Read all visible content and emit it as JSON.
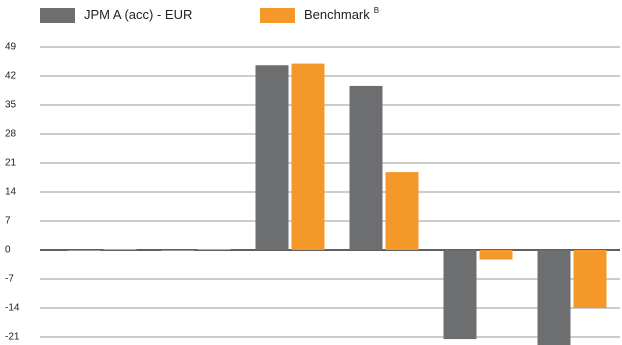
{
  "chart_data": {
    "type": "bar",
    "categories": [
      null,
      null,
      null,
      null,
      null,
      null
    ],
    "series": [
      {
        "name": "JPM A (acc) - EUR",
        "color": "#6d6e70",
        "values": [
          0,
          0,
          44.6,
          39.6,
          -21.5,
          -24
        ]
      },
      {
        "name": "Benchmark",
        "name_superscript": "B",
        "color": "#f4982a",
        "values": [
          0.2,
          0.2,
          45,
          18.8,
          -2.3,
          -14
        ]
      }
    ],
    "ylim": [
      -22.9,
      49
    ],
    "yticks": [
      49,
      42,
      35,
      28,
      21,
      14,
      7,
      0,
      -7,
      -14,
      -21
    ],
    "grid": true
  }
}
